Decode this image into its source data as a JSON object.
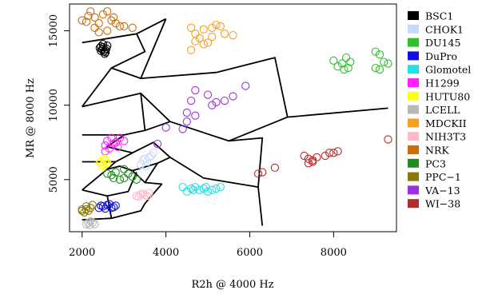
{
  "chart_data": {
    "type": "scatter",
    "title": "",
    "xlabel": "R2h @ 4000 Hz",
    "ylabel": "MR @ 8000 Hz",
    "xlim": [
      1700,
      9500
    ],
    "ylim": [
      1500,
      16800
    ],
    "xticks": [
      2000,
      4000,
      6000,
      8000
    ],
    "yticks": [
      5000,
      10000,
      15000
    ],
    "grid": false,
    "legend_position": "right",
    "series": [
      {
        "name": "BSC1",
        "color": "#000000",
        "points": [
          [
            2500,
            13900
          ],
          [
            2550,
            13700
          ],
          [
            2450,
            13950
          ],
          [
            2600,
            14000
          ],
          [
            2480,
            13750
          ],
          [
            2520,
            13600
          ],
          [
            2580,
            13800
          ],
          [
            2450,
            13650
          ],
          [
            2500,
            14100
          ],
          [
            2560,
            13550
          ],
          [
            2420,
            13850
          ],
          [
            2540,
            13450
          ]
        ]
      },
      {
        "name": "CHOK1",
        "color": "#c6dbf7",
        "points": [
          [
            3500,
            6400
          ],
          [
            3600,
            6500
          ],
          [
            3700,
            6800
          ],
          [
            3400,
            6000
          ],
          [
            3550,
            6200
          ],
          [
            3650,
            6600
          ],
          [
            3450,
            6300
          ],
          [
            3520,
            5900
          ]
        ]
      },
      {
        "name": "DU145",
        "color": "#2ec02e",
        "points": [
          [
            8000,
            13000
          ],
          [
            8100,
            12600
          ],
          [
            8200,
            12800
          ],
          [
            8300,
            13200
          ],
          [
            8400,
            12900
          ],
          [
            8250,
            12400
          ],
          [
            8350,
            12500
          ],
          [
            9000,
            13600
          ],
          [
            9100,
            13400
          ],
          [
            9200,
            12900
          ],
          [
            9300,
            12800
          ],
          [
            9100,
            12400
          ],
          [
            9000,
            12500
          ]
        ]
      },
      {
        "name": "DuPro",
        "color": "#1010e0",
        "points": [
          [
            2400,
            3100
          ],
          [
            2500,
            3200
          ],
          [
            2600,
            3300
          ],
          [
            2700,
            3100
          ],
          [
            2800,
            3250
          ],
          [
            2550,
            3050
          ],
          [
            2650,
            3350
          ],
          [
            2750,
            3150
          ],
          [
            2450,
            3250
          ]
        ]
      },
      {
        "name": "Glomotel",
        "color": "#20e0e8",
        "points": [
          [
            4400,
            4500
          ],
          [
            4500,
            4200
          ],
          [
            4600,
            4400
          ],
          [
            4700,
            4500
          ],
          [
            4800,
            4300
          ],
          [
            4900,
            4400
          ],
          [
            5000,
            4200
          ],
          [
            5100,
            4300
          ],
          [
            5200,
            4400
          ],
          [
            5300,
            4500
          ],
          [
            4650,
            4300
          ],
          [
            4950,
            4500
          ]
        ]
      },
      {
        "name": "H1299",
        "color": "#ff20ff",
        "points": [
          [
            2550,
            7300
          ],
          [
            2600,
            7600
          ],
          [
            2700,
            7800
          ],
          [
            2800,
            7500
          ],
          [
            2900,
            7800
          ],
          [
            3000,
            7600
          ],
          [
            2650,
            7100
          ],
          [
            2750,
            7400
          ],
          [
            2550,
            6900
          ],
          [
            2850,
            7200
          ]
        ]
      },
      {
        "name": "HUTU80",
        "color": "#ffff10",
        "points": [
          [
            2450,
            6200
          ],
          [
            2500,
            6000
          ],
          [
            2550,
            6300
          ],
          [
            2600,
            6100
          ],
          [
            2480,
            5900
          ],
          [
            2520,
            6400
          ],
          [
            2580,
            6050
          ],
          [
            2420,
            6150
          ]
        ]
      },
      {
        "name": "LCELL",
        "color": "#b8b8b8",
        "points": [
          [
            2100,
            2000
          ],
          [
            2150,
            2100
          ],
          [
            2200,
            2200
          ],
          [
            2250,
            2100
          ],
          [
            2300,
            2000
          ],
          [
            2180,
            1950
          ]
        ]
      },
      {
        "name": "MDCKII",
        "color": "#f5a020",
        "points": [
          [
            4600,
            15200
          ],
          [
            4700,
            14800
          ],
          [
            4800,
            14500
          ],
          [
            4900,
            15100
          ],
          [
            5000,
            14200
          ],
          [
            5100,
            14600
          ],
          [
            5200,
            15400
          ],
          [
            5300,
            15300
          ],
          [
            5400,
            14800
          ],
          [
            5600,
            14700
          ],
          [
            4600,
            13700
          ],
          [
            4700,
            14300
          ],
          [
            4900,
            14100
          ],
          [
            5100,
            15200
          ]
        ]
      },
      {
        "name": "NIH3T3",
        "color": "#ffb8c8",
        "points": [
          [
            3300,
            3900
          ],
          [
            3400,
            4000
          ],
          [
            3500,
            3950
          ],
          [
            3600,
            4100
          ],
          [
            3350,
            3850
          ],
          [
            3450,
            4050
          ],
          [
            3550,
            3900
          ]
        ]
      },
      {
        "name": "NRK",
        "color": "#c86e10",
        "points": [
          [
            2000,
            15700
          ],
          [
            2100,
            15600
          ],
          [
            2200,
            16300
          ],
          [
            2300,
            15900
          ],
          [
            2400,
            15500
          ],
          [
            2500,
            16100
          ],
          [
            2600,
            16300
          ],
          [
            2700,
            15700
          ],
          [
            2800,
            15500
          ],
          [
            2900,
            15300
          ],
          [
            3000,
            15300
          ],
          [
            3200,
            15200
          ],
          [
            2300,
            15200
          ],
          [
            2600,
            15000
          ],
          [
            2400,
            14900
          ],
          [
            2150,
            16000
          ],
          [
            2750,
            15900
          ]
        ]
      },
      {
        "name": "PC3",
        "color": "#208c20",
        "points": [
          [
            2600,
            5400
          ],
          [
            2700,
            5300
          ],
          [
            2800,
            5500
          ],
          [
            2900,
            5000
          ],
          [
            3000,
            5100
          ],
          [
            3100,
            5400
          ],
          [
            3200,
            5200
          ],
          [
            3300,
            5000
          ],
          [
            2750,
            5100
          ],
          [
            3000,
            5700
          ]
        ]
      },
      {
        "name": "PPC−1",
        "color": "#8c7808",
        "points": [
          [
            2000,
            3000
          ],
          [
            2100,
            3200
          ],
          [
            2200,
            3100
          ],
          [
            2050,
            2800
          ],
          [
            2150,
            2900
          ],
          [
            2250,
            3300
          ],
          [
            2100,
            3000
          ],
          [
            2000,
            2900
          ]
        ]
      },
      {
        "name": "VA−13",
        "color": "#9a30e0",
        "points": [
          [
            4000,
            8500
          ],
          [
            4400,
            8400
          ],
          [
            4500,
            8900
          ],
          [
            4500,
            9500
          ],
          [
            4600,
            10300
          ],
          [
            4700,
            9300
          ],
          [
            4700,
            11000
          ],
          [
            5100,
            10000
          ],
          [
            5200,
            10200
          ],
          [
            5400,
            10300
          ],
          [
            5600,
            10600
          ],
          [
            5900,
            11300
          ],
          [
            5000,
            10700
          ],
          [
            3800,
            7400
          ]
        ]
      },
      {
        "name": "WI−38",
        "color": "#b42c2c",
        "points": [
          [
            6200,
            5400
          ],
          [
            6300,
            5500
          ],
          [
            6600,
            5800
          ],
          [
            7300,
            6600
          ],
          [
            7400,
            6400
          ],
          [
            7500,
            6200
          ],
          [
            7600,
            6500
          ],
          [
            7800,
            6600
          ],
          [
            7900,
            6800
          ],
          [
            8000,
            6800
          ],
          [
            8100,
            6900
          ],
          [
            7500,
            6300
          ],
          [
            9300,
            7700
          ],
          [
            7400,
            6100
          ]
        ]
      }
    ]
  }
}
